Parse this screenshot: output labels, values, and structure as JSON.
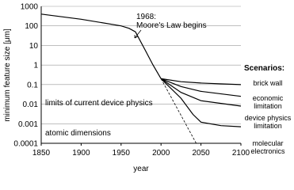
{
  "chart_data": {
    "type": "line",
    "xlabel": "year",
    "ylabel": "minimum feature size [μm]",
    "xlim": [
      1850,
      2100
    ],
    "xticks": [
      1850,
      1900,
      1950,
      2000,
      2050,
      2100
    ],
    "ylim": [
      0.0001,
      1000
    ],
    "yticks": [
      0.0001,
      0.001,
      0.01,
      0.1,
      1,
      10,
      100,
      1000
    ],
    "log_y": true,
    "grid": true,
    "legend_title": "Scenarios:",
    "annotations": [
      "1968:",
      "Moore's Law begins",
      "limits of current device physics",
      "atomic dimensions"
    ],
    "series": [
      {
        "color": "#000000",
        "x": [
          1850,
          1900,
          1950,
          1960,
          1968,
          1980,
          1990,
          2000
        ],
        "values": [
          400,
          220,
          100,
          75,
          50,
          6,
          1,
          0.2
        ]
      },
      {
        "color": "#000000",
        "dashed": true,
        "x": [
          2000,
          2044
        ],
        "values": [
          0.2,
          0.0001
        ]
      },
      {
        "name": "brick wall",
        "color": "#000000",
        "x": [
          2000,
          2025,
          2050,
          2100
        ],
        "values": [
          0.2,
          0.14,
          0.12,
          0.1
        ]
      },
      {
        "name": "economic limitation",
        "color": "#000000",
        "x": [
          2000,
          2025,
          2050,
          2100
        ],
        "values": [
          0.2,
          0.08,
          0.045,
          0.025
        ]
      },
      {
        "name": "device physics limitation",
        "color": "#000000",
        "x": [
          2000,
          2025,
          2050,
          2100
        ],
        "values": [
          0.2,
          0.04,
          0.015,
          0.008
        ]
      },
      {
        "name": "molecular electronics",
        "color": "#000000",
        "x": [
          2000,
          2025,
          2040,
          2050,
          2075,
          2100
        ],
        "values": [
          0.2,
          0.02,
          0.003,
          0.0012,
          0.0008,
          0.0007
        ]
      }
    ]
  }
}
